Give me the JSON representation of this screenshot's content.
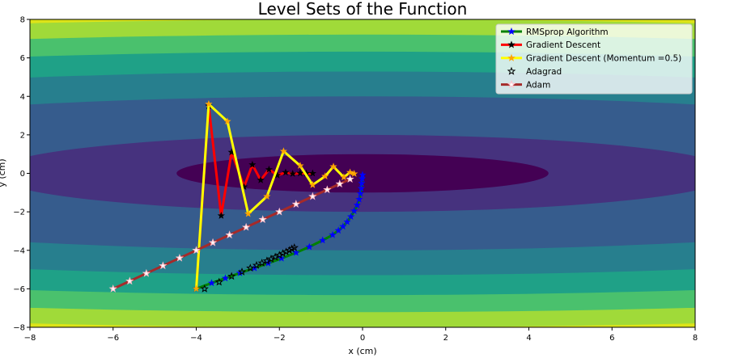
{
  "chart_data": {
    "type": "line",
    "title": "Level Sets of the Function",
    "xlabel": "x (cm)",
    "ylabel": "y (cm)",
    "xlim": [
      -8,
      8
    ],
    "ylim": [
      -8,
      8
    ],
    "xticks": [
      -8,
      -6,
      -4,
      -2,
      0,
      2,
      4,
      6,
      8
    ],
    "yticks": [
      -8,
      -6,
      -4,
      -2,
      0,
      2,
      4,
      6,
      8
    ],
    "grid": false,
    "legend_position": "top-right",
    "contour": {
      "function": "x^2 + 20*y^2",
      "colormap": "viridis",
      "level_colors": [
        "#440154",
        "#46327e",
        "#365c8d",
        "#277f8e",
        "#1fa187",
        "#4ac16d",
        "#a0da39",
        "#dde318"
      ]
    },
    "series": [
      {
        "name": "RMSprop Algorithm",
        "line_color": "#008000",
        "marker_color": "#0000ff",
        "marker": "star",
        "points": [
          [
            -4,
            -6
          ],
          [
            -3.63,
            -5.7
          ],
          [
            -3.3,
            -5.45
          ],
          [
            -2.95,
            -5.18
          ],
          [
            -2.6,
            -4.92
          ],
          [
            -2.27,
            -4.67
          ],
          [
            -1.95,
            -4.42
          ],
          [
            -1.6,
            -4.12
          ],
          [
            -1.28,
            -3.82
          ],
          [
            -0.96,
            -3.48
          ],
          [
            -0.72,
            -3.2
          ],
          [
            -0.58,
            -2.97
          ],
          [
            -0.47,
            -2.76
          ],
          [
            -0.37,
            -2.52
          ],
          [
            -0.28,
            -2.25
          ],
          [
            -0.2,
            -1.95
          ],
          [
            -0.13,
            -1.65
          ],
          [
            -0.08,
            -1.35
          ],
          [
            -0.05,
            -1.05
          ],
          [
            -0.03,
            -0.78
          ],
          [
            -0.02,
            -0.52
          ],
          [
            -0.01,
            -0.28
          ],
          [
            0,
            -0.08
          ]
        ]
      },
      {
        "name": "Gradient Descent",
        "line_color": "#ff0000",
        "marker_color": "#000000",
        "marker": "star",
        "points": [
          [
            -4,
            -6
          ],
          [
            -3.7,
            3.5
          ],
          [
            -3.4,
            -2.2
          ],
          [
            -3.15,
            1.1
          ],
          [
            -2.85,
            -0.7
          ],
          [
            -2.65,
            0.45
          ],
          [
            -2.45,
            -0.35
          ],
          [
            -2.25,
            0.2
          ],
          [
            -2.05,
            -0.1
          ],
          [
            -1.85,
            0.05
          ],
          [
            -1.68,
            -0.02
          ],
          [
            -1.5,
            0.01
          ],
          [
            -1.35,
            0
          ],
          [
            -1.2,
            0
          ]
        ]
      },
      {
        "name": "Gradient Descent (Momentum =0.5)",
        "line_color": "#ffff00",
        "marker_color": "#ffa500",
        "marker": "star",
        "points": [
          [
            -4,
            -6
          ],
          [
            -3.7,
            3.6
          ],
          [
            -3.25,
            2.7
          ],
          [
            -2.75,
            -2.1
          ],
          [
            -2.3,
            -1.2
          ],
          [
            -1.9,
            1.15
          ],
          [
            -1.5,
            0.4
          ],
          [
            -1.2,
            -0.6
          ],
          [
            -0.9,
            -0.15
          ],
          [
            -0.7,
            0.35
          ],
          [
            -0.45,
            -0.2
          ],
          [
            -0.3,
            0.05
          ],
          [
            -0.2,
            -0.02
          ]
        ]
      },
      {
        "name": "Adagrad",
        "line_color": "none",
        "marker_color": "#000000",
        "marker": "star",
        "points": [
          [
            -3.8,
            -6
          ],
          [
            -3.45,
            -5.65
          ],
          [
            -3.15,
            -5.35
          ],
          [
            -2.9,
            -5.12
          ],
          [
            -2.7,
            -4.92
          ],
          [
            -2.55,
            -4.78
          ],
          [
            -2.42,
            -4.66
          ],
          [
            -2.3,
            -4.55
          ],
          [
            -2.2,
            -4.45
          ],
          [
            -2.1,
            -4.35
          ],
          [
            -2.0,
            -4.25
          ],
          [
            -1.92,
            -4.16
          ],
          [
            -1.84,
            -4.08
          ],
          [
            -1.76,
            -4.0
          ],
          [
            -1.7,
            -3.92
          ],
          [
            -1.64,
            -3.86
          ]
        ]
      },
      {
        "name": "Adam",
        "line_color": "#a52a2a",
        "marker_color": "#ffc0cb",
        "marker": "star",
        "points": [
          [
            -6,
            -6
          ],
          [
            -5.6,
            -5.6
          ],
          [
            -5.2,
            -5.2
          ],
          [
            -4.8,
            -4.8
          ],
          [
            -4.4,
            -4.4
          ],
          [
            -4.0,
            -4.0
          ],
          [
            -3.6,
            -3.6
          ],
          [
            -3.2,
            -3.2
          ],
          [
            -2.8,
            -2.8
          ],
          [
            -2.4,
            -2.4
          ],
          [
            -2.0,
            -2.0
          ],
          [
            -1.6,
            -1.6
          ],
          [
            -1.2,
            -1.2
          ],
          [
            -0.85,
            -0.85
          ],
          [
            -0.55,
            -0.55
          ],
          [
            -0.3,
            -0.3
          ]
        ]
      }
    ]
  }
}
